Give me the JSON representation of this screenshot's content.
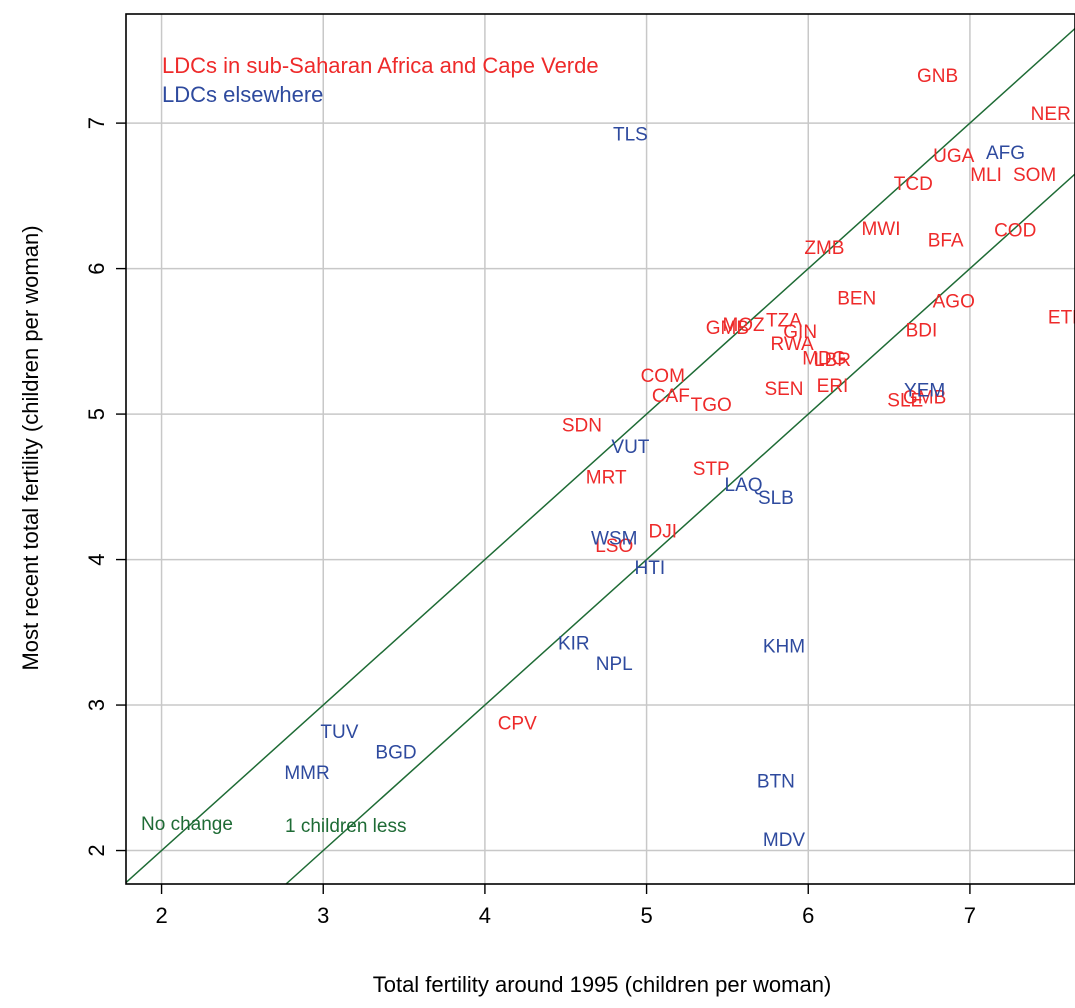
{
  "chart_data": {
    "type": "scatter",
    "title": "",
    "xlabel": "Total fertility around 1995 (children per woman)",
    "ylabel": "Most recent total fertility (children per woman)",
    "xlim": [
      1.78,
      7.65
    ],
    "ylim": [
      1.77,
      7.75
    ],
    "xticks": [
      2,
      3,
      4,
      5,
      6,
      7
    ],
    "yticks": [
      2,
      3,
      4,
      5,
      6,
      7
    ],
    "grid": true,
    "legend_placement": "top-left",
    "colors": {
      "africa": "#ee2a2a",
      "elsewhere": "#2e4a9e",
      "lines": "#1e6b35",
      "grid": "#c8c8c8"
    },
    "legend": [
      {
        "label": "LDCs in sub-Saharan Africa and Cape Verde",
        "color": "#ee2a2a"
      },
      {
        "label": "LDCs elsewhere",
        "color": "#2e4a9e"
      }
    ],
    "reference_lines": [
      {
        "label": "No change",
        "offset": 0
      },
      {
        "label": "1 children less",
        "offset": -1
      }
    ],
    "series": [
      {
        "name": "LDCs in sub-Saharan Africa and Cape Verde",
        "points": [
          {
            "label": "GNB",
            "x": 6.8,
            "y": 7.33
          },
          {
            "label": "NER",
            "x": 7.5,
            "y": 7.07
          },
          {
            "label": "UGA",
            "x": 6.9,
            "y": 6.78
          },
          {
            "label": "MLI",
            "x": 7.1,
            "y": 6.65
          },
          {
            "label": "SOM",
            "x": 7.4,
            "y": 6.65
          },
          {
            "label": "TCD",
            "x": 6.65,
            "y": 6.59
          },
          {
            "label": "MWI",
            "x": 6.45,
            "y": 6.28
          },
          {
            "label": "ZMB",
            "x": 6.1,
            "y": 6.15
          },
          {
            "label": "BFA",
            "x": 6.85,
            "y": 6.2
          },
          {
            "label": "COD",
            "x": 7.28,
            "y": 6.27
          },
          {
            "label": "BEN",
            "x": 6.3,
            "y": 5.8
          },
          {
            "label": "AGO",
            "x": 6.9,
            "y": 5.78
          },
          {
            "label": "ETH",
            "x": 7.6,
            "y": 5.67
          },
          {
            "label": "TZA",
            "x": 5.85,
            "y": 5.65
          },
          {
            "label": "GMB",
            "x": 5.5,
            "y": 5.6
          },
          {
            "label": "MOZ",
            "x": 5.6,
            "y": 5.62
          },
          {
            "label": "GIN",
            "x": 5.95,
            "y": 5.57
          },
          {
            "label": "BDI",
            "x": 6.7,
            "y": 5.58
          },
          {
            "label": "RWA",
            "x": 5.9,
            "y": 5.49
          },
          {
            "label": "MDG",
            "x": 6.1,
            "y": 5.39
          },
          {
            "label": "LBR",
            "x": 6.15,
            "y": 5.38
          },
          {
            "label": "COM",
            "x": 5.1,
            "y": 5.27
          },
          {
            "label": "CAF",
            "x": 5.15,
            "y": 5.13
          },
          {
            "label": "ERI",
            "x": 6.15,
            "y": 5.2
          },
          {
            "label": "SEN",
            "x": 5.85,
            "y": 5.18
          },
          {
            "label": "TGO",
            "x": 5.4,
            "y": 5.07
          },
          {
            "label": "SLE",
            "x": 6.6,
            "y": 5.1
          },
          {
            "label": "GMB",
            "x": 6.72,
            "y": 5.12
          },
          {
            "label": "SDN",
            "x": 4.6,
            "y": 4.93
          },
          {
            "label": "STP",
            "x": 5.4,
            "y": 4.63
          },
          {
            "label": "MRT",
            "x": 4.75,
            "y": 4.57
          },
          {
            "label": "DJI",
            "x": 5.1,
            "y": 4.2
          },
          {
            "label": "LSO",
            "x": 4.8,
            "y": 4.1
          },
          {
            "label": "CPV",
            "x": 4.2,
            "y": 2.88
          }
        ]
      },
      {
        "name": "LDCs elsewhere",
        "points": [
          {
            "label": "TLS",
            "x": 4.9,
            "y": 6.93
          },
          {
            "label": "AFG",
            "x": 7.22,
            "y": 6.8
          },
          {
            "label": "YEM",
            "x": 6.72,
            "y": 5.17
          },
          {
            "label": "VUT",
            "x": 4.9,
            "y": 4.78
          },
          {
            "label": "LAQ",
            "x": 5.6,
            "y": 4.52
          },
          {
            "label": "SLB",
            "x": 5.8,
            "y": 4.43
          },
          {
            "label": "WSM",
            "x": 4.8,
            "y": 4.15
          },
          {
            "label": "HTI",
            "x": 5.02,
            "y": 3.95
          },
          {
            "label": "KIR",
            "x": 4.55,
            "y": 3.43
          },
          {
            "label": "NPL",
            "x": 4.8,
            "y": 3.29
          },
          {
            "label": "KHM",
            "x": 5.85,
            "y": 3.41
          },
          {
            "label": "TUV",
            "x": 3.1,
            "y": 2.82
          },
          {
            "label": "BGD",
            "x": 3.45,
            "y": 2.68
          },
          {
            "label": "MMR",
            "x": 2.9,
            "y": 2.54
          },
          {
            "label": "BTN",
            "x": 5.8,
            "y": 2.48
          },
          {
            "label": "MDV",
            "x": 5.85,
            "y": 2.08
          }
        ]
      }
    ]
  }
}
